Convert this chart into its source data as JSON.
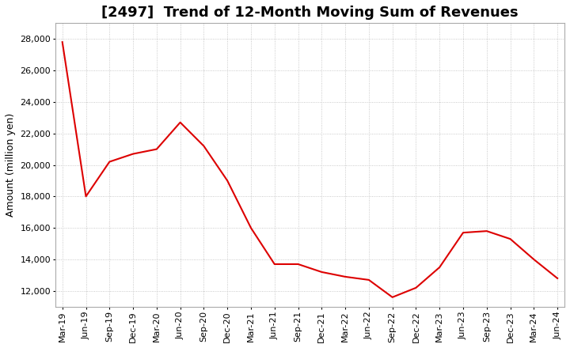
{
  "title": "[2497]  Trend of 12-Month Moving Sum of Revenues",
  "ylabel": "Amount (million yen)",
  "background_color": "#ffffff",
  "grid_color": "#bbbbbb",
  "line_color": "#dd0000",
  "x_labels": [
    "Mar-19",
    "Jun-19",
    "Sep-19",
    "Dec-19",
    "Mar-20",
    "Jun-20",
    "Sep-20",
    "Dec-20",
    "Mar-21",
    "Jun-21",
    "Sep-21",
    "Dec-21",
    "Mar-22",
    "Jun-22",
    "Sep-22",
    "Dec-22",
    "Mar-23",
    "Jun-23",
    "Sep-23",
    "Dec-23",
    "Mar-24",
    "Jun-24"
  ],
  "values": [
    27800,
    18000,
    20200,
    20700,
    21000,
    22700,
    21200,
    19000,
    16000,
    13700,
    13700,
    13200,
    12900,
    12700,
    11600,
    12200,
    13500,
    15700,
    15800,
    15300,
    14000,
    12800
  ],
  "ylim": [
    11000,
    29000
  ],
  "yticks": [
    12000,
    14000,
    16000,
    18000,
    20000,
    22000,
    24000,
    26000,
    28000
  ],
  "title_fontsize": 13,
  "label_fontsize": 9,
  "tick_fontsize": 8
}
